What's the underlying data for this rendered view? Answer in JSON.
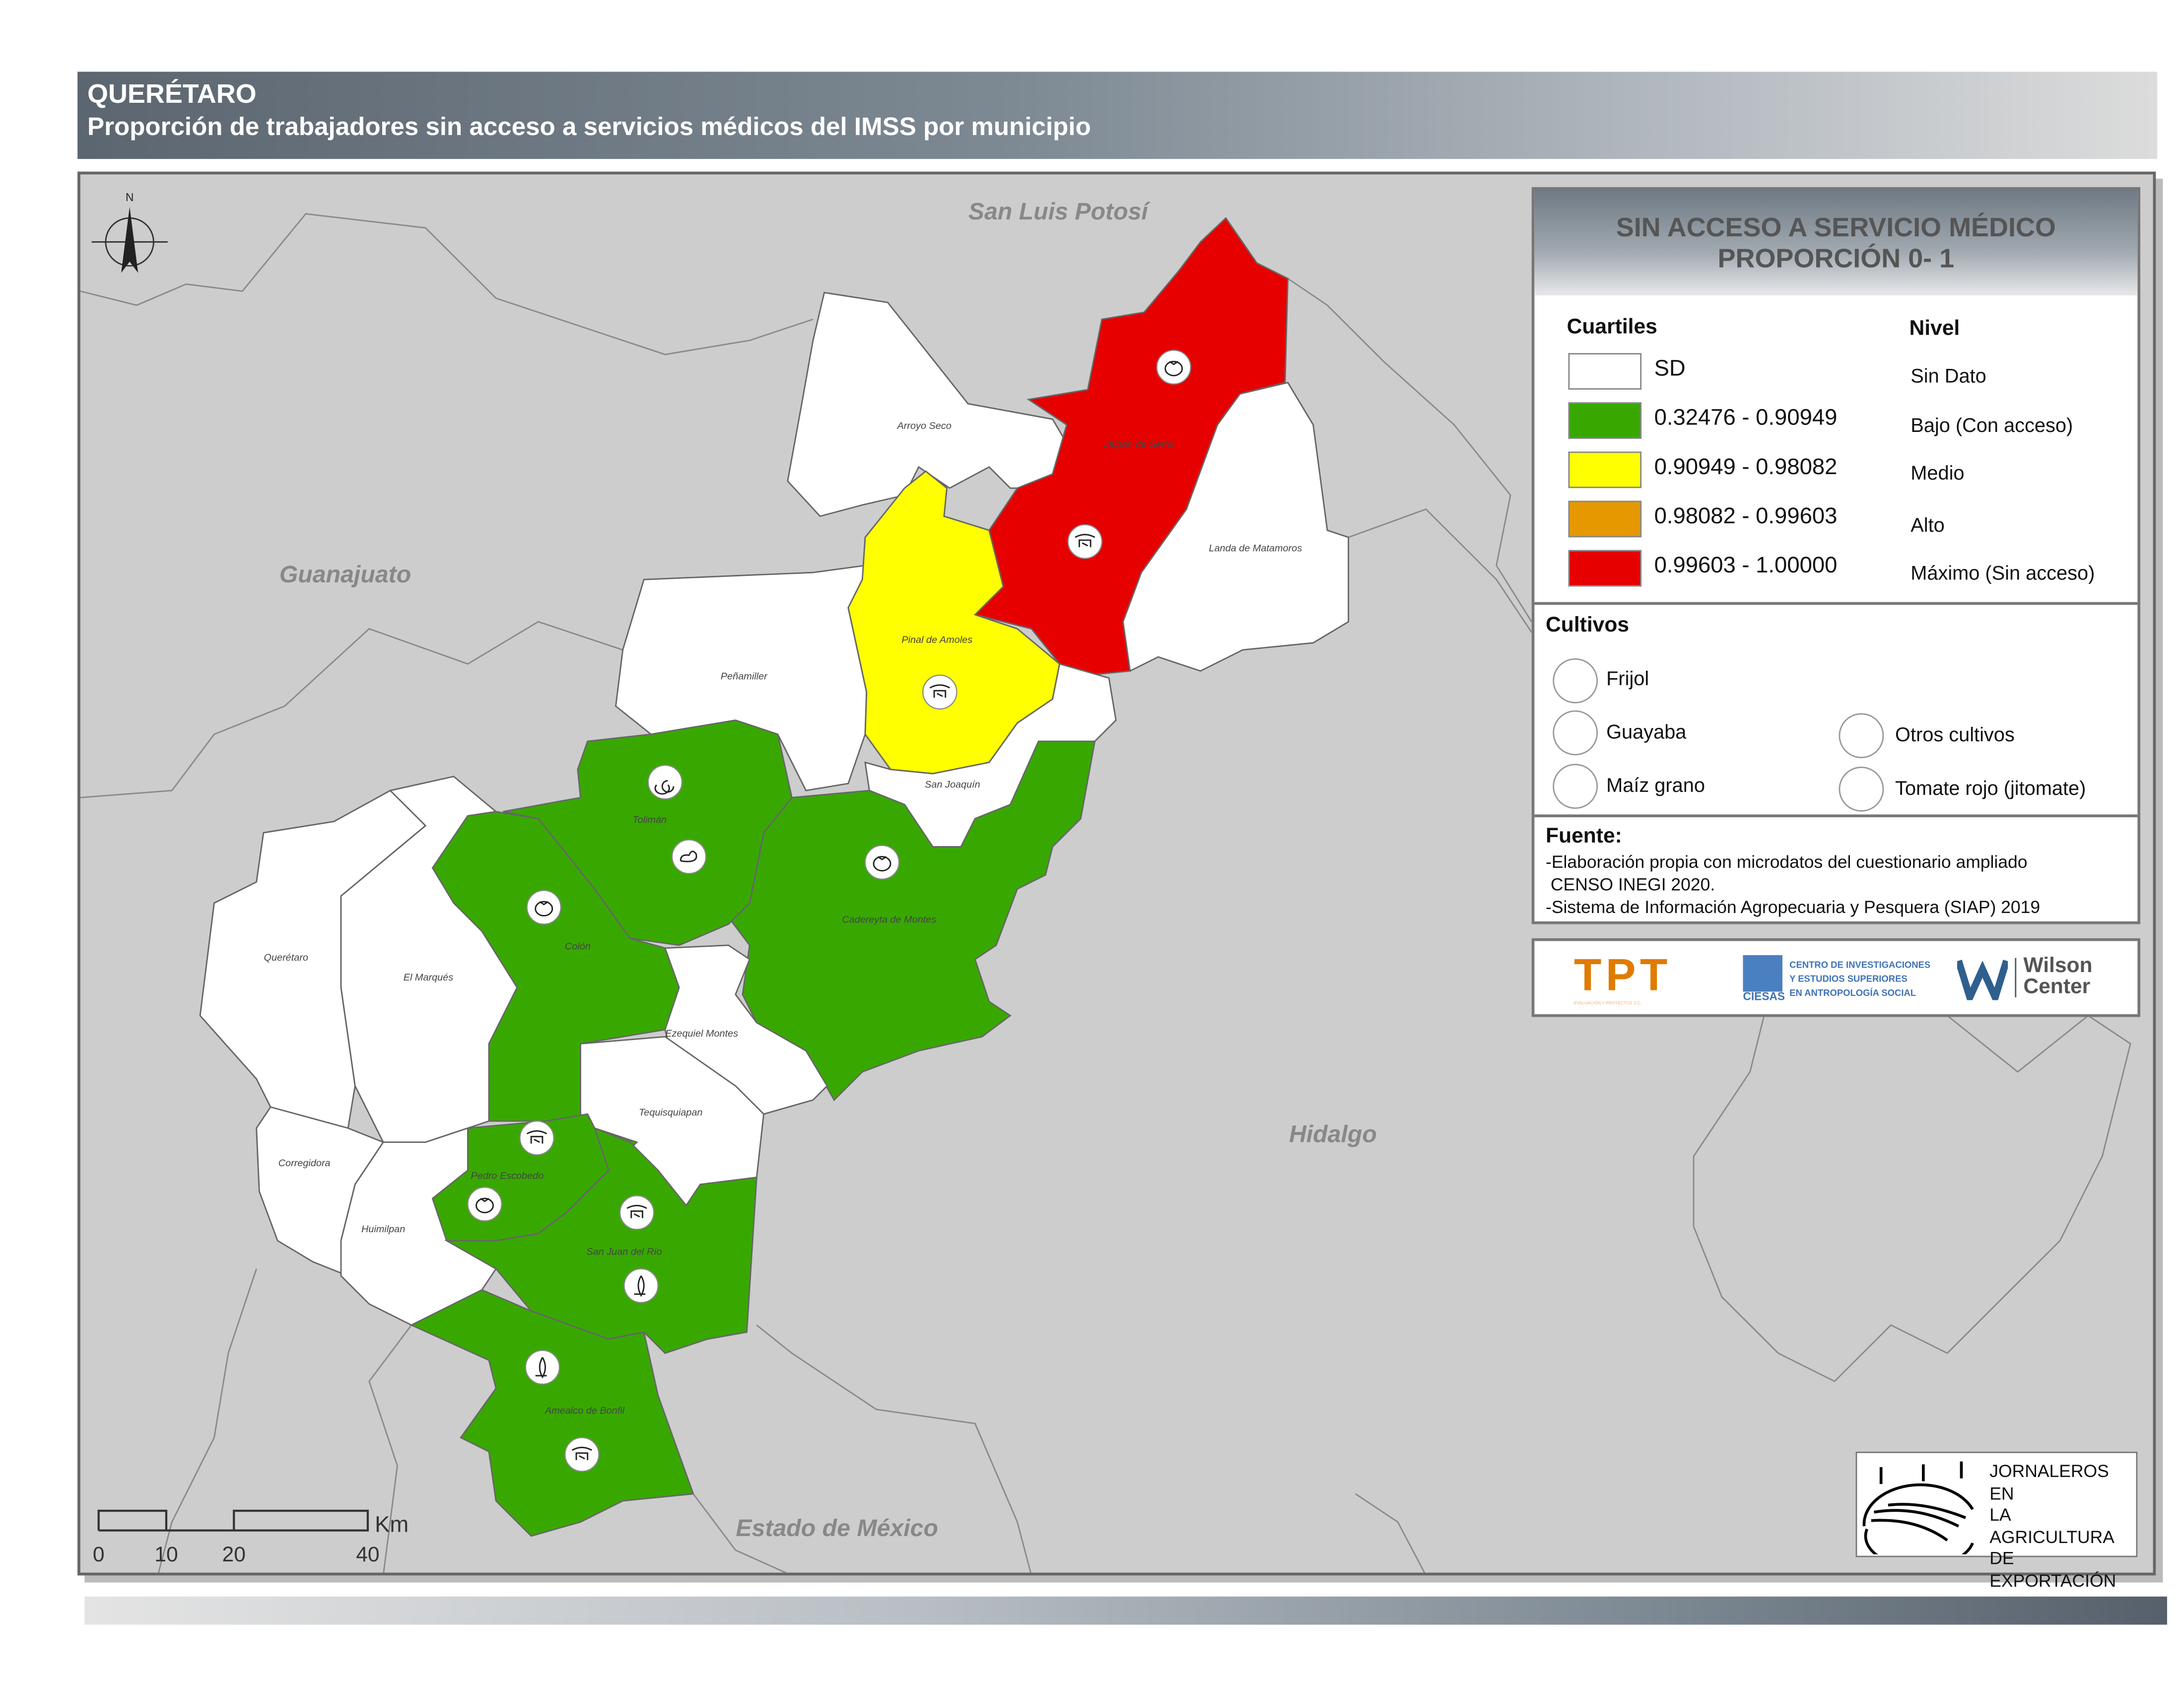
{
  "header": {
    "state": "QUERÉTARO",
    "subtitle": "Proporción de trabajadores sin acceso a servicios médicos del IMSS por municipio"
  },
  "map": {
    "north_label": "N",
    "neighbors": [
      "San Luis Potosí",
      "Guanajuato",
      "Hidalgo",
      "Estado de México"
    ],
    "municipalities": [
      {
        "name": "Arroyo Seco",
        "level": "SD"
      },
      {
        "name": "Jalpan de Serra",
        "level": "Máximo"
      },
      {
        "name": "Landa de Matamoros",
        "level": "SD"
      },
      {
        "name": "Pinal de Amoles",
        "level": "Medio"
      },
      {
        "name": "Peñamiller",
        "level": "SD"
      },
      {
        "name": "San Joaquín",
        "level": "SD"
      },
      {
        "name": "Tolimán",
        "level": "Bajo"
      },
      {
        "name": "Cadereyta de Montes",
        "level": "Bajo"
      },
      {
        "name": "Colón",
        "level": "Bajo"
      },
      {
        "name": "Querétaro",
        "level": "SD"
      },
      {
        "name": "El Marqués",
        "level": "SD"
      },
      {
        "name": "Ezequiel Montes",
        "level": "SD"
      },
      {
        "name": "Tequisquiapan",
        "level": "SD"
      },
      {
        "name": "Corregidora",
        "level": "SD"
      },
      {
        "name": "Pedro Escobedo",
        "level": "Bajo"
      },
      {
        "name": "Huimilpan",
        "level": "SD"
      },
      {
        "name": "San Juan del Río",
        "level": "Bajo"
      },
      {
        "name": "Amealco de Bonfil",
        "level": "Bajo"
      }
    ],
    "crop_markers": [
      {
        "municipality": "Jalpan de Serra",
        "crop": "Tomate rojo (jitomate)"
      },
      {
        "municipality": "Jalpan de Serra",
        "crop": "Otros cultivos"
      },
      {
        "municipality": "Pinal de Amoles",
        "crop": "Otros cultivos"
      },
      {
        "municipality": "Tolimán",
        "crop": "Guayaba"
      },
      {
        "municipality": "Tolimán",
        "crop": "Frijol"
      },
      {
        "municipality": "Colón",
        "crop": "Tomate rojo (jitomate)"
      },
      {
        "municipality": "Cadereyta de Montes",
        "crop": "Tomate rojo (jitomate)"
      },
      {
        "municipality": "Pedro Escobedo",
        "crop": "Otros cultivos"
      },
      {
        "municipality": "Pedro Escobedo",
        "crop": "Tomate rojo (jitomate)"
      },
      {
        "municipality": "San Juan del Río",
        "crop": "Otros cultivos"
      },
      {
        "municipality": "San Juan del Río",
        "crop": "Maíz grano"
      },
      {
        "municipality": "Amealco de Bonfil",
        "crop": "Maíz grano"
      },
      {
        "municipality": "Amealco de Bonfil",
        "crop": "Otros cultivos"
      }
    ],
    "scale": {
      "ticks": [
        "0",
        "10",
        "20",
        "40"
      ],
      "unit": "Km"
    }
  },
  "legend": {
    "title_line1": "SIN ACCESO A SERVICIO MÉDICO",
    "title_line2": "PROPORCIÓN 0- 1",
    "cuartiles_label": "Cuartiles",
    "nivel_label": "Nivel",
    "classes": [
      {
        "range": "SD",
        "nivel": "Sin Dato",
        "color": "#ffffff"
      },
      {
        "range": "0.32476 - 0.90949",
        "nivel": "Bajo (Con acceso)",
        "color": "#38a800"
      },
      {
        "range": "0.90949 - 0.98082",
        "nivel": "Medio",
        "color": "#ffff00"
      },
      {
        "range": "0.98082 - 0.99603",
        "nivel": "Alto",
        "color": "#e69800"
      },
      {
        "range": "0.99603 - 1.00000",
        "nivel": "Máximo (Sin acceso)",
        "color": "#e60000"
      }
    ],
    "cultivos_label": "Cultivos",
    "cultivos": [
      "Frijol",
      "Guayaba",
      "Maíz grano",
      "Otros cultivos",
      "Tomate rojo (jitomate)"
    ],
    "fuente_label": "Fuente:",
    "fuente_lines": [
      "-Elaboración propia con microdatos del cuestionario ampliado",
      " CENSO INEGI 2020.",
      "-Sistema de Información Agropecuaria y Pesquera (SIAP) 2019"
    ]
  },
  "logos": {
    "tpt": "TPT",
    "tpt_sub": "EVALUACIÓN Y PROYECTOS S.C.",
    "ciesas_lines": [
      "CENTRO DE INVESTIGACIONES",
      "Y ESTUDIOS SUPERIORES",
      "EN ANTROPOLOGÍA SOCIAL"
    ],
    "ciesas": "CIESAS",
    "wilson_lines": [
      "Wilson",
      "Center"
    ],
    "jornaleros_lines": [
      "JORNALEROS EN",
      "LA AGRICULTURA",
      "DE EXPORTACIÓN"
    ]
  }
}
